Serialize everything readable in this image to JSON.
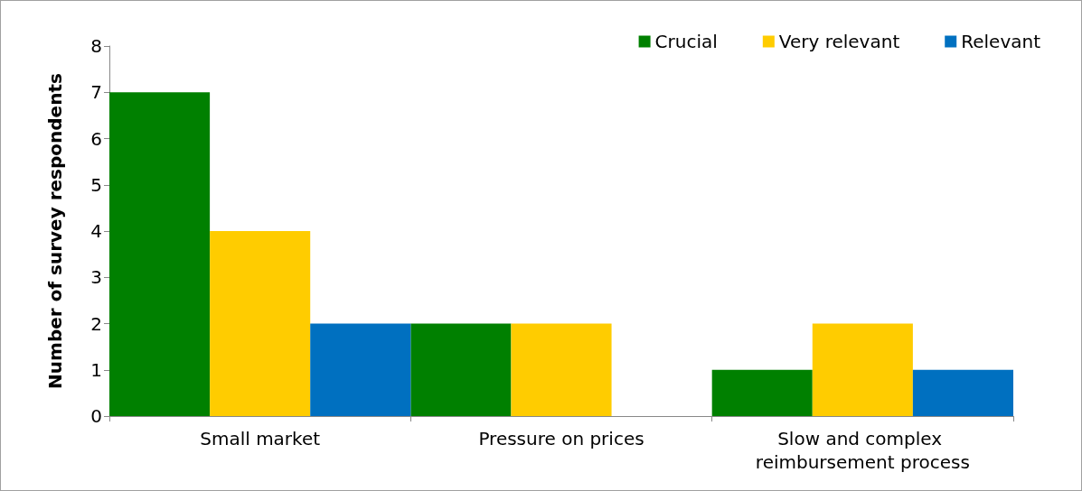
{
  "chart_data": {
    "type": "bar",
    "ylabel": "Number of survey respondents",
    "categories": [
      "Small market",
      "Pressure on prices",
      "Slow and complex reimbursement process"
    ],
    "series": [
      {
        "name": "Crucial",
        "color": "#008000",
        "values": [
          7,
          2,
          1
        ]
      },
      {
        "name": "Very relevant",
        "color": "#ffcc00",
        "values": [
          4,
          2,
          2
        ]
      },
      {
        "name": "Relevant",
        "color": "#0070c0",
        "values": [
          2,
          0,
          1
        ]
      }
    ],
    "ylim": [
      0,
      8
    ],
    "yticks": [
      0,
      1,
      2,
      3,
      4,
      5,
      6,
      7,
      8
    ],
    "grid": false,
    "legend": "top right"
  }
}
